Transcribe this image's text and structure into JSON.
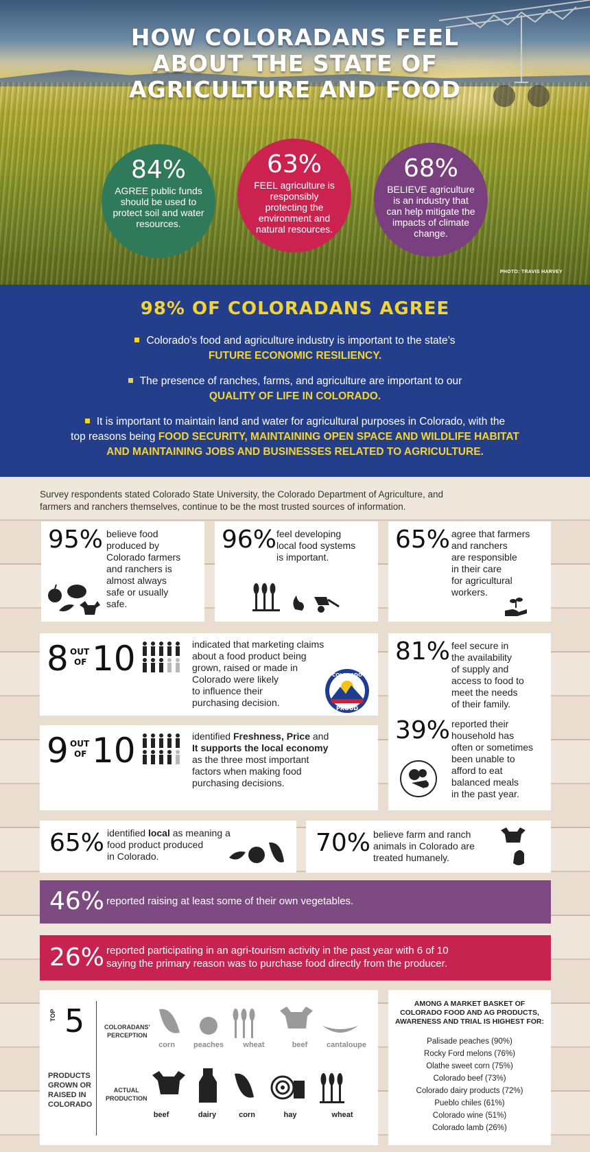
{
  "hero": {
    "title_lines": [
      "HOW COLORADANS FEEL",
      "ABOUT THE STATE OF",
      "AGRICULTURE AND FOOD"
    ],
    "circles": [
      {
        "pct": "84%",
        "text": "AGREE public funds should be used to protect soil and water resources.",
        "color": "#2f7a5a"
      },
      {
        "pct": "63%",
        "text": "FEEL agriculture is responsibly protecting the environment and natural resources.",
        "color": "#cc2250"
      },
      {
        "pct": "68%",
        "text": "BELIEVE agriculture is an industry that can help mitigate the impacts of climate change.",
        "color": "#7a3f7f"
      }
    ],
    "credit": "PHOTO: TRAVIS HARVEY"
  },
  "agree": {
    "title": "98% OF COLORADANS AGREE",
    "b1_text": "Colorado’s food and agriculture industry is important to the state’s",
    "b1_hl": "FUTURE ECONOMIC RESILIENCY.",
    "b2_text": "The presence of ranches, farms, and agriculture are important to our",
    "b2_hl": "QUALITY OF LIFE IN COLORADO.",
    "b3_text": "It is important to maintain land and water for agricultural purposes in Colorado, with the",
    "b3_text2": "top reasons being",
    "b3_hl1": "FOOD SECURITY, MAINTAINING OPEN SPACE AND WILDLIFE HABITAT",
    "b3_hl2": "AND MAINTAINING JOBS AND BUSINESSES RELATED TO AGRICULTURE."
  },
  "intro_line1": "Survey respondents stated  Colorado State University, the Colorado Department of  Agriculture, and",
  "intro_line2": "farmers and ranchers themselves, continue to be the most trusted sources of information.",
  "stats": {
    "s95": {
      "pct": "95%",
      "l1": "believe food",
      "l2": "produced by",
      "l3": "Colorado farmers",
      "l4": "and ranchers is",
      "l5": "almost always",
      "l6": "safe or usually",
      "l7": "safe."
    },
    "s96": {
      "pct": "96%",
      "l1": "feel developing",
      "l2": "local food systems",
      "l3": "is important."
    },
    "s65a": {
      "pct": "65%",
      "l1": "agree that farmers",
      "l2": "and ranchers",
      "l3": "are responsible",
      "l4": "in their care",
      "l5": "for agricultural",
      "l6": "workers."
    },
    "s8": {
      "num": "8",
      "out": "OUT",
      "of": "OF",
      "ten": "10",
      "l1": "indicated that marketing claims",
      "l2": "about a food product being",
      "l3": "grown, raised or made in",
      "l4": "Colorado were likely",
      "l5": "to influence their",
      "l6": "purchasing decision.",
      "logo_top": "COLORADO",
      "logo_bottom": "PROUD"
    },
    "s9": {
      "num": "9",
      "out": "OUT",
      "of": "OF",
      "ten": "10",
      "l1a": "identified ",
      "l1b": "Freshness, Price",
      "l1c": " and",
      "l2": "It supports the local economy",
      "l3": "as the three most important",
      "l4": "factors when making food",
      "l5": "purchasing decisions."
    },
    "s81": {
      "pct": "81%",
      "l1": "feel secure in",
      "l2": "the availability",
      "l3": "of supply and",
      "l4": "access to food to",
      "l5": "meet the needs",
      "l6": "of their family."
    },
    "s39": {
      "pct": "39%",
      "l1": "reported their",
      "l2": "household has",
      "l3": "often or sometimes",
      "l4": "been unable to",
      "l5": "afford to eat",
      "l6": "balanced meals",
      "l7": "in the past year."
    },
    "s65b": {
      "pct": "65%",
      "l1a": "identified ",
      "l1b": "local",
      "l1c": " as meaning a",
      "l2": "food product produced",
      "l3": "in Colorado."
    },
    "s70": {
      "pct": "70%",
      "l1": "believe farm and ranch",
      "l2": "animals in Colorado are",
      "l3": "treated humanely."
    },
    "s46": {
      "pct": "46%",
      "text": "reported raising at least some of their own vegetables.",
      "color": "#7d4a82"
    },
    "s26": {
      "pct": "26%",
      "l1": "reported participating in an agri-tourism activity in the past year with 6 of 10",
      "l2": "saying the primary reason was to purchase food directly from the producer.",
      "color": "#c62350"
    }
  },
  "top5": {
    "top": "TOP",
    "five": "5",
    "side1": "PRODUCTS",
    "side2": "GROWN OR",
    "side3": "RAISED IN",
    "side4": "COLORADO",
    "perception_l1": "COLORADANS'",
    "perception_l2": "PERCEPTION",
    "actual_l1": "ACTUAL",
    "actual_l2": "PRODUCTION",
    "perception_items": [
      "corn",
      "peaches",
      "wheat",
      "beef",
      "cantaloupe"
    ],
    "actual_items": [
      "beef",
      "dairy",
      "corn",
      "hay",
      "wheat"
    ]
  },
  "basket": {
    "h1": "AMONG A MARKET BASKET OF",
    "h2": "COLORADO FOOD AND AG PRODUCTS,",
    "h3": "AWARENESS AND TRIAL IS HIGHEST FOR:",
    "items": [
      "Palisade peaches (90%)",
      "Rocky Ford melons (76%)",
      "Olathe sweet corn (75%)",
      "Colorado beef (73%)",
      "Colorado dairy products (72%)",
      "Pueblo chiles (61%)",
      "Colorado wine (51%)",
      "Colorado lamb (26%)"
    ]
  }
}
